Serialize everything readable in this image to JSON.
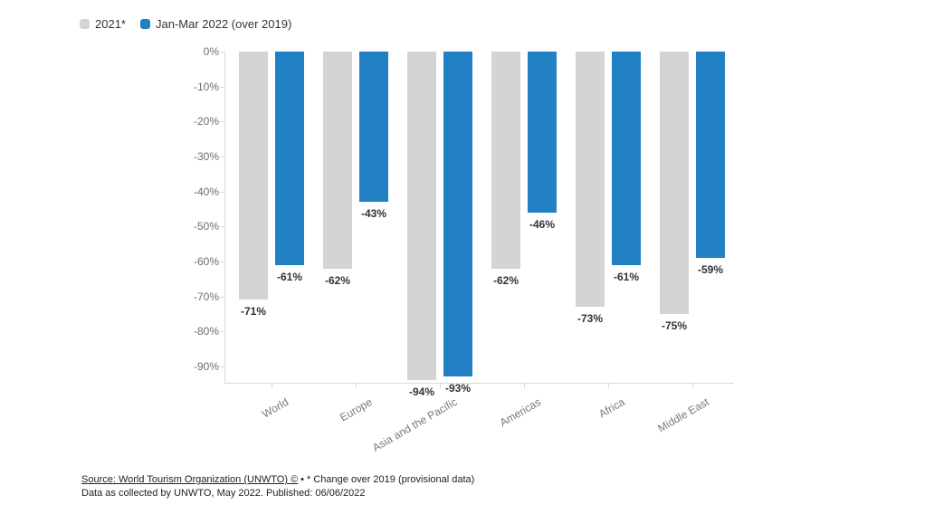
{
  "legend": {
    "items": [
      {
        "label": "2021*",
        "color": "#d4d4d4"
      },
      {
        "label": "Jan-Mar 2022 (over 2019)",
        "color": "#2181c4"
      }
    ]
  },
  "chart_data": {
    "type": "bar",
    "title": "",
    "xlabel": "",
    "ylabel": "",
    "categories": [
      "World",
      "Europe",
      "Asia and the Pacific",
      "Americas",
      "Africa",
      "Middle East"
    ],
    "series": [
      {
        "name": "2021*",
        "color": "#d4d4d4",
        "values": [
          -71,
          -62,
          -94,
          -62,
          -73,
          -75
        ]
      },
      {
        "name": "Jan-Mar 2022 (over 2019)",
        "color": "#2181c4",
        "values": [
          -61,
          -43,
          -93,
          -46,
          -61,
          -59
        ]
      }
    ],
    "value_label_format": "{v}%",
    "y_ticks": [
      "0%",
      "-10%",
      "-20%",
      "-30%",
      "-40%",
      "-50%",
      "-60%",
      "-70%",
      "-80%",
      "-90%"
    ],
    "ylim": [
      -94.7,
      0
    ],
    "grid": false,
    "legend_position": "top-left"
  },
  "footer": {
    "source_link": "Source: World Tourism Organization (UNWTO) ©",
    "separator": "•",
    "note": "* Change over 2019 (provisional data)",
    "line2": "Data as collected by UNWTO, May 2022. Published: 06/06/2022"
  }
}
